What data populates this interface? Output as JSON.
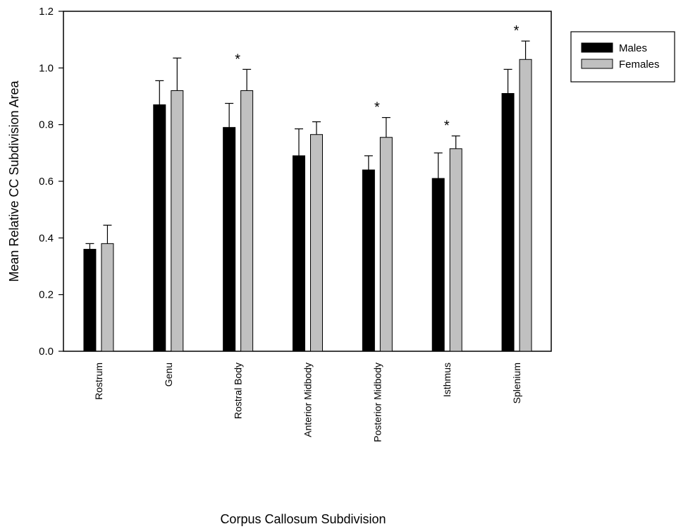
{
  "chart_data": {
    "type": "bar",
    "title": "",
    "xlabel": "Corpus Callosum Subdivision",
    "ylabel": "Mean Relative CC Subdivision Area",
    "ylim": [
      0,
      1.2
    ],
    "yticks": [
      "0.0",
      "0.2",
      "0.4",
      "0.6",
      "0.8",
      "1.0",
      "1.2"
    ],
    "categories": [
      "Rostrum",
      "Genu",
      "Rostral Body",
      "Anterior Midbody",
      "Posterior Midbody",
      "Isthmus",
      "Splenium"
    ],
    "series": [
      {
        "name": "Males",
        "color": "#000000",
        "values": [
          0.36,
          0.87,
          0.79,
          0.69,
          0.64,
          0.61,
          0.91
        ],
        "errors": [
          0.02,
          0.085,
          0.085,
          0.095,
          0.05,
          0.09,
          0.085
        ]
      },
      {
        "name": "Females",
        "color": "#c0c0c0",
        "values": [
          0.38,
          0.92,
          0.92,
          0.765,
          0.755,
          0.715,
          1.03
        ],
        "errors": [
          0.065,
          0.115,
          0.075,
          0.045,
          0.07,
          0.045,
          0.065
        ]
      }
    ],
    "significance": [
      "",
      "",
      "*",
      "",
      "*",
      "*",
      "*"
    ],
    "legend_position": "top-right",
    "grid": false
  }
}
